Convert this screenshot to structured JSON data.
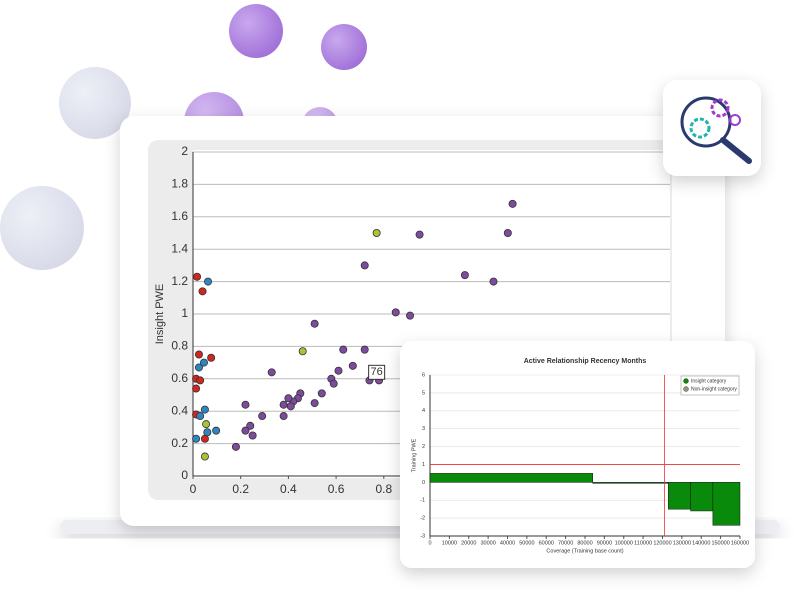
{
  "chart_data": [
    {
      "type": "scatter",
      "y_label": "Insight PWE",
      "xlim": [
        0,
        2
      ],
      "xticks": [
        0,
        0.2,
        0.4,
        0.6,
        0.8
      ],
      "ylim": [
        0,
        2
      ],
      "yticks": [
        0,
        0.2,
        0.4,
        0.6,
        0.8,
        1,
        1.2,
        1.4,
        1.6,
        1.8,
        2
      ],
      "grid": true,
      "annotation": "76",
      "annotation_at": [
        0.77,
        0.64
      ],
      "series": [
        {
          "color": "#d0261f",
          "x": [
            0.017,
            0.04,
            0.025,
            0.076,
            0.013,
            0.03,
            0.013,
            0.013,
            0.05
          ],
          "values": [
            1.23,
            1.14,
            0.75,
            0.73,
            0.6,
            0.59,
            0.54,
            0.38,
            0.23
          ]
        },
        {
          "color": "#2e86c1",
          "x": [
            0.063,
            0.025,
            0.046,
            0.05,
            0.03,
            0.013,
            0.06,
            0.097
          ],
          "values": [
            1.2,
            0.67,
            0.7,
            0.41,
            0.37,
            0.23,
            0.27,
            0.28
          ]
        },
        {
          "color": "#a9c23a",
          "x": [
            0.77,
            0.46,
            0.055,
            0.05
          ],
          "values": [
            1.5,
            0.77,
            0.32,
            0.12
          ]
        },
        {
          "color": "#7d4a9e",
          "x": [
            1.34,
            1.32,
            0.95,
            1.14,
            1.26,
            0.72,
            0.85,
            0.91,
            0.51,
            0.63,
            0.72,
            0.33,
            0.61,
            0.58,
            0.67,
            0.74,
            0.78,
            0.59,
            0.45,
            0.54,
            0.44,
            0.42,
            0.4,
            0.41,
            0.38,
            0.51,
            0.38,
            0.29,
            0.22,
            0.24,
            0.22,
            0.25,
            0.18
          ],
          "values": [
            1.68,
            1.5,
            1.49,
            1.24,
            1.2,
            1.3,
            1.01,
            0.99,
            0.94,
            0.78,
            0.78,
            0.64,
            0.65,
            0.6,
            0.68,
            0.59,
            0.59,
            0.57,
            0.51,
            0.51,
            0.48,
            0.46,
            0.48,
            0.43,
            0.44,
            0.45,
            0.37,
            0.37,
            0.44,
            0.31,
            0.28,
            0.25,
            0.18
          ]
        }
      ]
    },
    {
      "type": "histogram",
      "title": "Active Relationship Recency Months",
      "x_label": "Coverage (Training base count)",
      "y_label": "Training PWE",
      "xlim": [
        0,
        160000
      ],
      "xticks": [
        0,
        10000,
        20000,
        30000,
        40000,
        50000,
        60000,
        70000,
        80000,
        90000,
        100000,
        110000,
        120000,
        130000,
        140000,
        150000,
        160000
      ],
      "ylim": [
        -3,
        6
      ],
      "yticks": [
        -3,
        -2,
        -1,
        0,
        1,
        2,
        3,
        4,
        5,
        6
      ],
      "grid": true,
      "bins": [
        0,
        84000,
        123000,
        134500,
        146000,
        160000
      ],
      "values": [
        0.5,
        -0.05,
        -1.5,
        -1.6,
        -2.4
      ],
      "color": "#0a8a0a",
      "vline": 121000,
      "hline": 1,
      "reference_color": "#e33",
      "legend_position": "upper right",
      "legend": [
        {
          "name": "Insight category",
          "color": "#0a8a0a"
        },
        {
          "name": "Non-insight category",
          "color": "#8a9a7a"
        }
      ]
    }
  ]
}
